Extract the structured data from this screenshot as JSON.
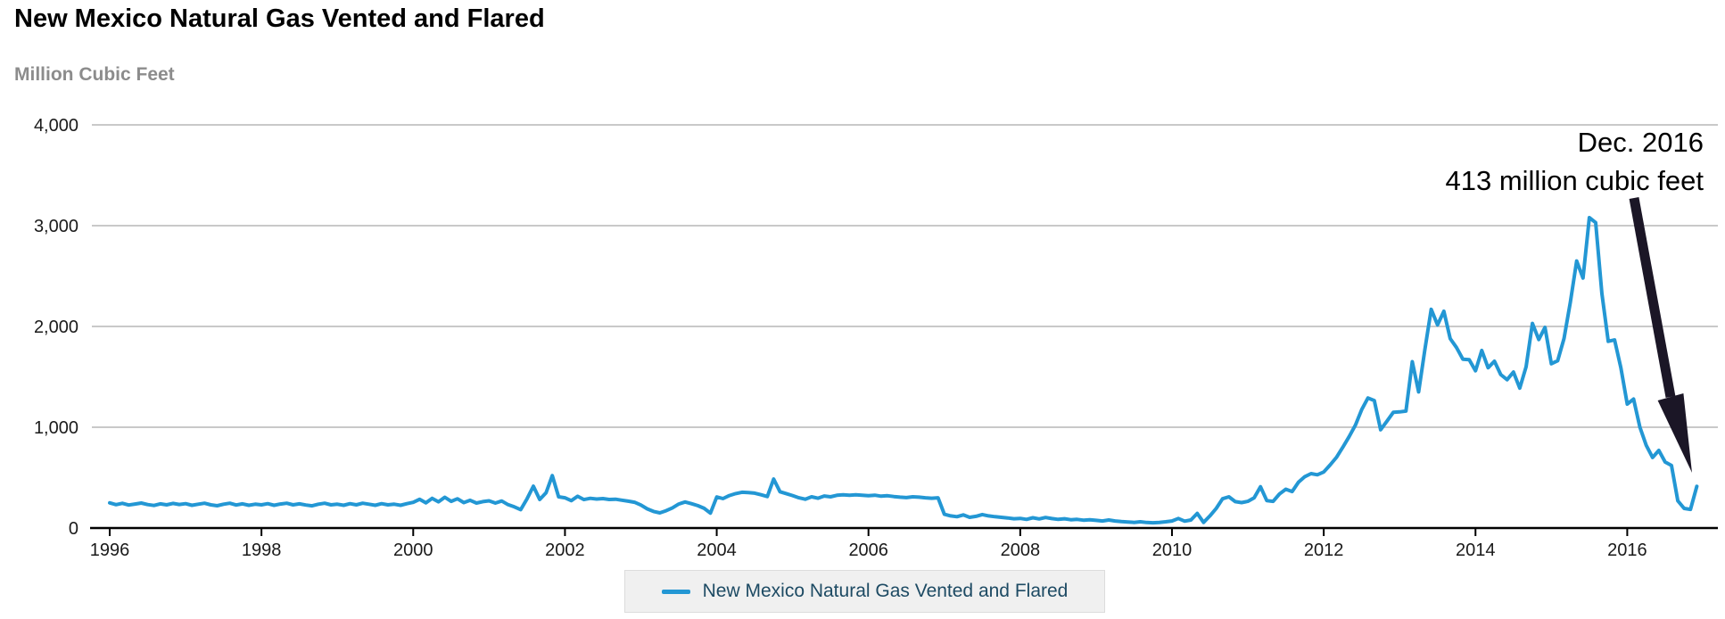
{
  "title": "New Mexico Natural Gas Vented and Flared",
  "y_axis_label": "Million Cubic Feet",
  "annotation": {
    "line1": "Dec. 2016",
    "line2": "413 million cubic feet"
  },
  "legend": {
    "label": "New Mexico Natural Gas Vented and Flared"
  },
  "colors": {
    "line": "#2397d4",
    "arrow": "#1b1626",
    "grid": "#c9c9c9",
    "axis": "#000000",
    "tick_label": "#1a1a1a",
    "unit_label": "#8c8c8c",
    "legend_bg": "#f0f0f0",
    "legend_border": "#dcdcdc",
    "legend_text": "#1d4a63"
  },
  "chart_data": {
    "type": "line",
    "title": "New Mexico Natural Gas Vented and Flared",
    "ylabel": "Million Cubic Feet",
    "unit": "million cubic feet",
    "frequency": "monthly",
    "start_year": 1996,
    "end_label": "Dec. 2016",
    "end_value": 413,
    "ylim": [
      0,
      4000
    ],
    "y_ticks": [
      0,
      1000,
      2000,
      3000,
      4000
    ],
    "x_tick_years": [
      1996,
      1998,
      2000,
      2002,
      2004,
      2006,
      2008,
      2010,
      2012,
      2014,
      2016
    ],
    "grid": true,
    "legend_position": "bottom-center",
    "series": [
      {
        "name": "New Mexico Natural Gas Vented and Flared",
        "values": [
          250,
          232,
          245,
          228,
          238,
          248,
          233,
          224,
          240,
          230,
          244,
          234,
          242,
          226,
          236,
          246,
          230,
          221,
          236,
          246,
          228,
          240,
          226,
          236,
          230,
          242,
          226,
          238,
          246,
          230,
          240,
          228,
          220,
          236,
          246,
          230,
          236,
          226,
          242,
          230,
          246,
          236,
          226,
          242,
          230,
          236,
          226,
          242,
          255,
          285,
          250,
          295,
          260,
          305,
          265,
          290,
          252,
          275,
          248,
          262,
          270,
          248,
          268,
          232,
          210,
          182,
          290,
          415,
          283,
          350,
          520,
          310,
          300,
          272,
          315,
          282,
          295,
          288,
          292,
          283,
          286,
          276,
          266,
          256,
          228,
          190,
          165,
          150,
          172,
          200,
          238,
          258,
          242,
          222,
          196,
          148,
          308,
          292,
          322,
          342,
          355,
          352,
          346,
          330,
          312,
          486,
          360,
          342,
          322,
          300,
          286,
          310,
          296,
          318,
          310,
          325,
          330,
          326,
          330,
          326,
          320,
          326,
          316,
          320,
          312,
          306,
          302,
          310,
          306,
          300,
          296,
          300,
          136,
          120,
          112,
          130,
          106,
          116,
          134,
          120,
          112,
          106,
          100,
          92,
          96,
          86,
          102,
          90,
          104,
          94,
          86,
          92,
          82,
          86,
          78,
          82,
          76,
          70,
          80,
          70,
          64,
          60,
          56,
          62,
          55,
          52,
          56,
          62,
          70,
          95,
          68,
          80,
          145,
          56,
          120,
          195,
          290,
          310,
          262,
          252,
          265,
          300,
          410,
          272,
          265,
          338,
          385,
          362,
          455,
          510,
          540,
          528,
          556,
          625,
          700,
          800,
          905,
          1020,
          1175,
          1290,
          1265,
          975,
          1060,
          1148,
          1152,
          1160,
          1650,
          1350,
          1770,
          2170,
          2015,
          2150,
          1880,
          1790,
          1675,
          1670,
          1560,
          1762,
          1590,
          1655,
          1522,
          1472,
          1548,
          1388,
          1600,
          2030,
          1870,
          1990,
          1630,
          1660,
          1880,
          2240,
          2650,
          2480,
          3080,
          3030,
          2325,
          1852,
          1866,
          1588,
          1230,
          1280,
          1000,
          820,
          700,
          770,
          655,
          620,
          270,
          195,
          185,
          413
        ]
      }
    ]
  }
}
